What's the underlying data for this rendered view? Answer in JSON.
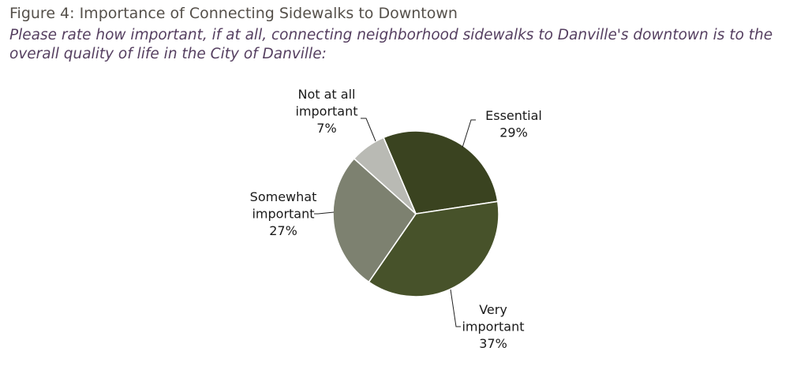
{
  "figure": {
    "title": "Figure 4: Importance of Connecting Sidewalks to Downtown",
    "subtitle": "Please rate how important, if at all, connecting neighborhood sidewalks to Danville's downtown is to the overall quality of life in the City of Danville:"
  },
  "chart_data": {
    "type": "pie",
    "title": "Figure 4: Importance of Connecting Sidewalks to Downtown",
    "subtitle": "Please rate how important, if at all, connecting neighborhood sidewalks to Danville's downtown is to the overall quality of life in the City of Danville:",
    "unit": "%",
    "slices": [
      {
        "label": "Essential",
        "label_lines": [
          "Essential"
        ],
        "value": 29,
        "value_text": "29%",
        "color": "#3a4320"
      },
      {
        "label": "Very important",
        "label_lines": [
          "Very",
          "important"
        ],
        "value": 37,
        "value_text": "37%",
        "color": "#47522a"
      },
      {
        "label": "Somewhat important",
        "label_lines": [
          "Somewhat",
          "important"
        ],
        "value": 27,
        "value_text": "27%",
        "color": "#7d8170"
      },
      {
        "label": "Not at all important",
        "label_lines": [
          "Not at all",
          "important"
        ],
        "value": 7,
        "value_text": "7%",
        "color": "#b9bab4"
      }
    ],
    "legend": "none",
    "data_labels": "outside with leader lines"
  }
}
